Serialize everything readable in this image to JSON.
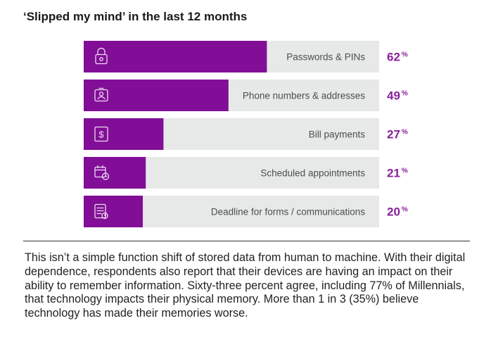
{
  "title": "‘Slipped my mind’ in the last 12 months",
  "colors": {
    "accent": "#820e97",
    "track": "#e6e9e8",
    "value": "#8a1e9b"
  },
  "chart_data": {
    "type": "bar",
    "orientation": "horizontal",
    "title": "‘Slipped my mind’ in the last 12 months",
    "unit": "%",
    "categories": [
      "Passwords & PINs",
      "Phone numbers & addresses",
      "Bill payments",
      "Scheduled appointments",
      "Deadline for forms / communications"
    ],
    "values": [
      62,
      49,
      27,
      21,
      20
    ],
    "value_labels": [
      "62",
      "49",
      "27",
      "21",
      "20"
    ],
    "icons": [
      "lock-icon",
      "contact-card-icon",
      "bill-icon",
      "calendar-icon",
      "document-icon"
    ],
    "xlim": [
      0,
      100
    ],
    "grid": false,
    "legend": "none"
  },
  "body_text": "This isn’t a simple function shift of stored data from human to machine. With their digital dependence, respondents also report that their devices are having an impact on their ability to remember information. Sixty-three percent agree, including 77% of Millennials, that technology impacts their physical memory. More than 1 in 3 (35%) believe technology has made their memories worse."
}
